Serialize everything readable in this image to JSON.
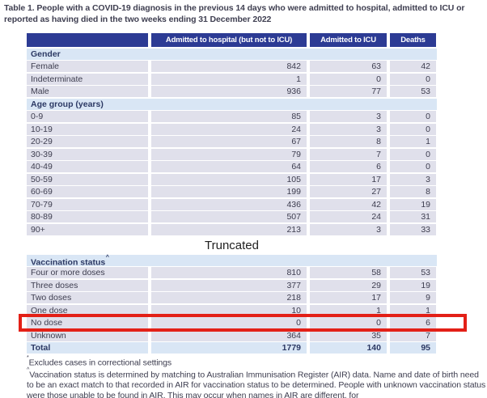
{
  "title": "Table 1. People with a COVID-19 diagnosis in the previous 14 days who were admitted to hospital, admitted to ICU or reported as having died in the two weeks ending 31 December 2022",
  "truncated_label": "Truncated",
  "colors": {
    "header_bg": "#2c3b94",
    "header_text": "#ffffff",
    "section_bg": "#d9e6f5",
    "row_bg": "#e0e0eb",
    "navy_text": "#2c3964",
    "row_text": "#3d3d4f",
    "title_text": "#3f3f51",
    "truncated_text": "#1f1f1f",
    "highlight_red": "#e32017"
  },
  "table_top": {
    "header": [
      "",
      "Admitted to hospital (but not to ICU)",
      "Admitted to ICU",
      "Deaths"
    ],
    "rows": [
      {
        "type": "section",
        "label": "Gender"
      },
      {
        "type": "data",
        "label": "Female",
        "values": [
          "842",
          "63",
          "42"
        ]
      },
      {
        "type": "data",
        "label": "Indeterminate",
        "values": [
          "1",
          "0",
          "0"
        ]
      },
      {
        "type": "data",
        "label": "Male",
        "values": [
          "936",
          "77",
          "53"
        ]
      },
      {
        "type": "section",
        "label": "Age group (years)"
      },
      {
        "type": "data",
        "label": "0-9",
        "values": [
          "85",
          "3",
          "0"
        ]
      },
      {
        "type": "data",
        "label": "10-19",
        "values": [
          "24",
          "3",
          "0"
        ]
      },
      {
        "type": "data",
        "label": "20-29",
        "values": [
          "67",
          "8",
          "1"
        ]
      },
      {
        "type": "data",
        "label": "30-39",
        "values": [
          "79",
          "7",
          "0"
        ]
      },
      {
        "type": "data",
        "label": "40-49",
        "values": [
          "64",
          "6",
          "0"
        ]
      },
      {
        "type": "data",
        "label": "50-59",
        "values": [
          "105",
          "17",
          "3"
        ]
      },
      {
        "type": "data",
        "label": "60-69",
        "values": [
          "199",
          "27",
          "8"
        ]
      },
      {
        "type": "data",
        "label": "70-79",
        "values": [
          "436",
          "42",
          "19"
        ]
      },
      {
        "type": "data",
        "label": "80-89",
        "values": [
          "507",
          "24",
          "31"
        ]
      },
      {
        "type": "data",
        "label": "90+",
        "values": [
          "213",
          "3",
          "33"
        ]
      }
    ]
  },
  "table_bottom": {
    "rows": [
      {
        "type": "section",
        "label": "Vaccination status",
        "sup": "^"
      },
      {
        "type": "data",
        "label": "Four or more doses",
        "values": [
          "810",
          "58",
          "53"
        ]
      },
      {
        "type": "data",
        "label": "Three doses",
        "values": [
          "377",
          "29",
          "19"
        ]
      },
      {
        "type": "data",
        "label": "Two doses",
        "values": [
          "218",
          "17",
          "9"
        ]
      },
      {
        "type": "data",
        "label": "One dose",
        "values": [
          "10",
          "1",
          "1"
        ]
      },
      {
        "type": "data",
        "label": "No dose",
        "values": [
          "0",
          "0",
          "6"
        ],
        "highlighted": true
      },
      {
        "type": "data",
        "label": "Unknown",
        "values": [
          "364",
          "35",
          "7"
        ]
      },
      {
        "type": "total",
        "label": "Total",
        "values": [
          "1779",
          "140",
          "95"
        ]
      }
    ]
  },
  "footnotes": [
    {
      "marker": "*",
      "text": "Excludes cases in correctional settings"
    },
    {
      "marker": "^",
      "text": "Vaccination status is determined by matching to Australian Immunisation Register (AIR) data. Name and date of birth need to be an exact match to that recorded in AIR for vaccination status to be determined. People with unknown vaccination status were those unable to be found in AIR. This may occur when names in AIR are different, for"
    }
  ]
}
